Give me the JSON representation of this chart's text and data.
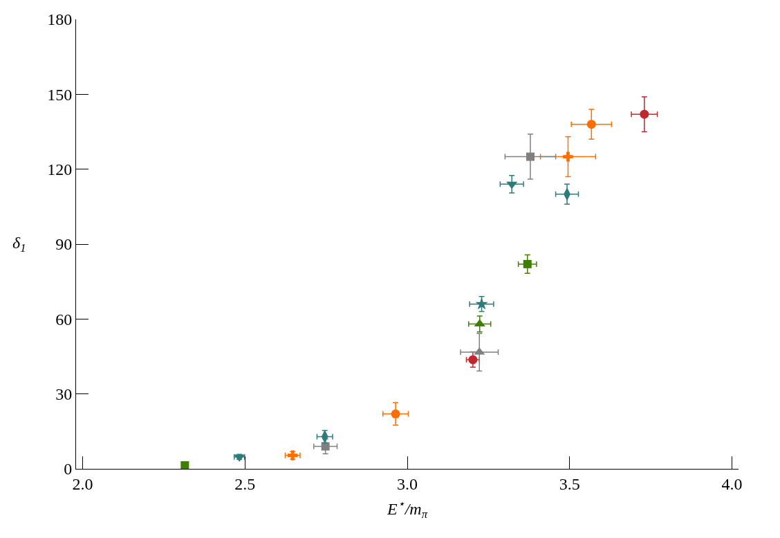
{
  "chart_data": {
    "type": "scatter",
    "xlabel": "E$^{⋆}$/m$_{π}$",
    "ylabel": "δ$_{1}$",
    "xlim": [
      1.98,
      4.02
    ],
    "ylim": [
      0,
      180
    ],
    "xticks": [
      {
        "value": 2.0,
        "label": "2.0"
      },
      {
        "value": 2.5,
        "label": "2.5"
      },
      {
        "value": 3.0,
        "label": "3.0"
      },
      {
        "value": 3.5,
        "label": "3.5"
      },
      {
        "value": 4.0,
        "label": "4.0"
      }
    ],
    "yticks": [
      0,
      30,
      60,
      90,
      120,
      150,
      180
    ],
    "series": [
      {
        "color": "#c1272d",
        "marker": "circle",
        "x": [
          3.202,
          3.73
        ],
        "values": [
          43.7,
          142
        ],
        "errors": [
          3,
          7
        ],
        "xerrors": [
          0.02,
          0.04
        ]
      },
      {
        "color": "#ff6e00",
        "marker": "circle",
        "x": [
          2.964,
          3.567
        ],
        "values": [
          22,
          138
        ],
        "errors": [
          4.5,
          6
        ],
        "xerrors": [
          0.039,
          0.062
        ]
      },
      {
        "color": "#ff6e00",
        "marker": "cross",
        "x": [
          2.647,
          3.495
        ],
        "values": [
          5.4,
          125
        ],
        "errors": [
          1.5,
          8
        ],
        "xerrors": [
          0.023,
          0.085
        ]
      },
      {
        "color": "#808080",
        "marker": "square",
        "x": [
          2.748,
          3.379
        ],
        "values": [
          9,
          125
        ],
        "errors": [
          3,
          9
        ],
        "xerrors": [
          0.036,
          0.078
        ]
      },
      {
        "color": "#2e7b7b",
        "marker": "diamond",
        "x": [
          2.746,
          3.492
        ],
        "values": [
          12.9,
          110
        ],
        "errors": [
          2.5,
          4
        ],
        "xerrors": [
          0.024,
          0.035
        ]
      },
      {
        "color": "#2e7b7b",
        "marker": "triangle_down",
        "x": [
          2.483,
          3.322
        ],
        "values": [
          4.8,
          114
        ],
        "errors": [
          1,
          3.5
        ],
        "xerrors": [
          0.016,
          0.036
        ]
      },
      {
        "color": "#3f7f00",
        "marker": "square",
        "x": [
          2.315,
          3.37
        ],
        "values": [
          1.4,
          82
        ],
        "errors": [
          null,
          3.7
        ],
        "xerrors": [
          null,
          0.028
        ]
      },
      {
        "color": "#3f7f00",
        "marker": "triangle",
        "x": [
          3.223
        ],
        "values": [
          58
        ],
        "errors": [
          3.2
        ],
        "xerrors": [
          0.034
        ]
      },
      {
        "color": "#2e7b7b",
        "marker": "star",
        "x": [
          3.229
        ],
        "values": [
          66
        ],
        "errors": [
          3
        ],
        "xerrors": [
          0.037
        ]
      },
      {
        "color": "#808080",
        "marker": "triangle",
        "x": [
          3.222
        ],
        "values": [
          46.7
        ],
        "errors": [
          7.5
        ],
        "xerrors": [
          0.058
        ]
      }
    ]
  }
}
